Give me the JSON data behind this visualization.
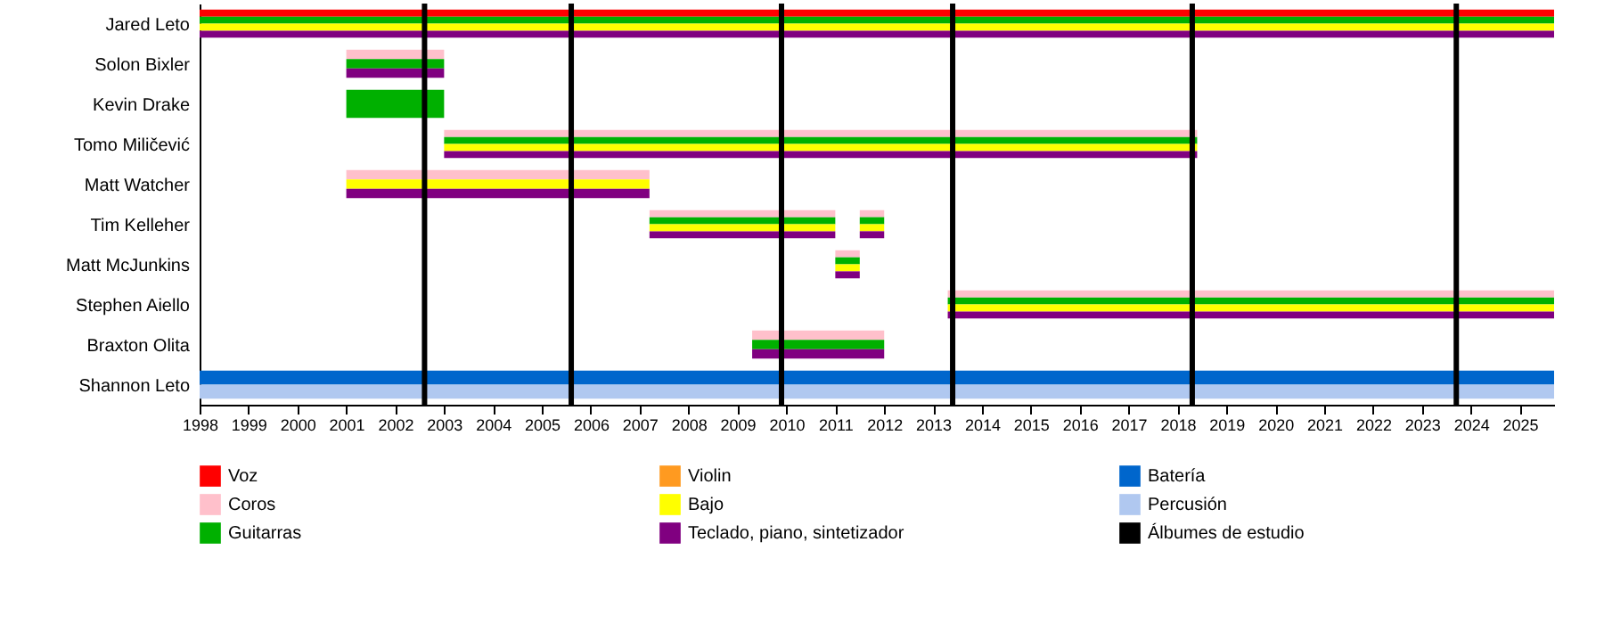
{
  "chart_data": {
    "type": "bar",
    "orientation": "horizontal",
    "categories": [
      "Jared Leto",
      "Solon Bixler",
      "Kevin Drake",
      "Tomo Miličević",
      "Matt Watcher",
      "Tim Kelleher",
      "Matt McJunkins",
      "Stephen Aiello",
      "Braxton Olita",
      "Shannon Leto"
    ],
    "series": [
      {
        "name": "Voz",
        "color": "#ff0000",
        "base": [
          1998,
          null,
          null,
          null,
          null,
          null,
          null,
          null,
          null,
          null
        ],
        "values": [
          27.7,
          null,
          null,
          null,
          null,
          null,
          null,
          null,
          null,
          null
        ]
      },
      {
        "name": "Coros",
        "color": "#ffc0cb",
        "base": [
          null,
          2001,
          null,
          2003,
          2001,
          2007.2,
          2011,
          2013.3,
          2009.3,
          null
        ],
        "values": [
          null,
          2,
          null,
          15.4,
          6.2,
          3.8,
          0.5,
          12.4,
          2.7,
          null
        ]
      },
      {
        "name": "Guitarras",
        "color": "#00b000",
        "base": [
          1998,
          2001,
          2001,
          2003,
          null,
          2007.2,
          2011,
          2013.3,
          2009.3,
          null
        ],
        "values": [
          27.7,
          2,
          2,
          15.4,
          null,
          3.8,
          0.5,
          12.4,
          2.7,
          null
        ]
      },
      {
        "name": "Violin",
        "color": "#ff9a20",
        "base": [
          null,
          null,
          null,
          null,
          null,
          null,
          null,
          null,
          null,
          null
        ],
        "values": [
          null,
          null,
          null,
          null,
          null,
          null,
          null,
          null,
          null,
          null
        ]
      },
      {
        "name": "Bajo",
        "color": "#ffff00",
        "base": [
          1998,
          null,
          null,
          2003,
          2001,
          2007.2,
          2011,
          2013.3,
          null,
          null
        ],
        "values": [
          27.7,
          null,
          null,
          15.4,
          6.2,
          3.8,
          0.5,
          12.4,
          null,
          null
        ]
      },
      {
        "name": "Teclado, piano, sintetizador",
        "color": "#800080",
        "base": [
          1998,
          2001,
          null,
          2003,
          2001,
          2007.2,
          2011,
          2013.3,
          2009.3,
          null
        ],
        "values": [
          27.7,
          2,
          null,
          15.4,
          6.2,
          3.8,
          0.5,
          12.4,
          2.7,
          null
        ]
      },
      {
        "name": "Batería",
        "color": "#0066cc",
        "base": [
          null,
          null,
          null,
          null,
          null,
          null,
          null,
          null,
          null,
          1998
        ],
        "values": [
          null,
          null,
          null,
          null,
          null,
          null,
          null,
          null,
          null,
          27.7
        ]
      },
      {
        "name": "Percusión",
        "color": "#b0c8f0",
        "base": [
          null,
          null,
          null,
          null,
          null,
          null,
          null,
          null,
          null,
          1998
        ],
        "values": [
          null,
          null,
          null,
          null,
          null,
          null,
          null,
          null,
          null,
          27.7
        ]
      },
      {
        "color": "#ffc0cb",
        "base": [
          null,
          null,
          null,
          null,
          null,
          2011.5,
          null,
          null,
          null,
          null
        ],
        "values": [
          null,
          null,
          null,
          null,
          null,
          0.5,
          null,
          null,
          null,
          null
        ]
      },
      {
        "color": "#00b000",
        "base": [
          null,
          null,
          null,
          null,
          null,
          2011.5,
          null,
          null,
          null,
          null
        ],
        "values": [
          null,
          null,
          null,
          null,
          null,
          0.5,
          null,
          null,
          null,
          null
        ]
      },
      {
        "color": "#ffff00",
        "base": [
          null,
          null,
          null,
          null,
          null,
          2011.5,
          null,
          null,
          null,
          null
        ],
        "values": [
          null,
          null,
          null,
          null,
          null,
          0.5,
          null,
          null,
          null,
          null
        ]
      },
      {
        "color": "#800080",
        "base": [
          null,
          null,
          null,
          null,
          null,
          2011.5,
          null,
          null,
          null,
          null
        ],
        "values": [
          null,
          null,
          null,
          null,
          null,
          0.5,
          null,
          null,
          null,
          null
        ]
      }
    ],
    "xlim": [
      1998,
      2025.7
    ],
    "xticks": [
      1998,
      1999,
      2000,
      2001,
      2002,
      2003,
      2004,
      2005,
      2006,
      2007,
      2008,
      2009,
      2010,
      2011,
      2012,
      2013,
      2014,
      2015,
      2016,
      2017,
      2018,
      2019,
      2020,
      2021,
      2022,
      2023,
      2024,
      2025
    ],
    "ref_lines": [
      {
        "axis": "x",
        "value": 2002.6,
        "label": "Álbumes de estudio",
        "color": "#000000"
      },
      {
        "axis": "x",
        "value": 2005.6
      },
      {
        "axis": "x",
        "value": 2009.9
      },
      {
        "axis": "x",
        "value": 2013.4
      },
      {
        "axis": "x",
        "value": 2018.3
      },
      {
        "axis": "x",
        "value": 2023.7
      }
    ],
    "grid": false,
    "legend": "bottom"
  }
}
